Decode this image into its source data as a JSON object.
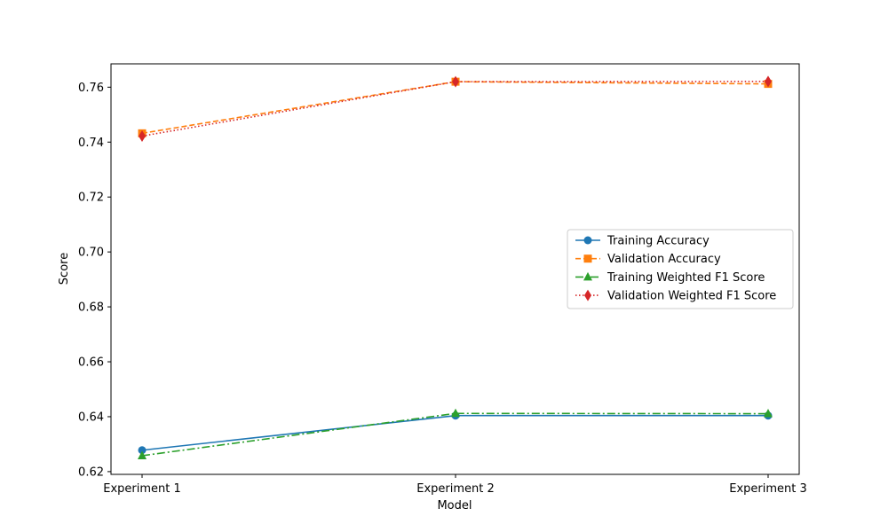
{
  "chart_data": {
    "type": "line",
    "categories": [
      "Experiment 1",
      "Experiment 2",
      "Experiment 3"
    ],
    "xlabel": "Model",
    "ylabel": "Score",
    "ylim": [
      0.619,
      0.7685
    ],
    "yticks": [
      0.62,
      0.64,
      0.66,
      0.68,
      0.7,
      0.72,
      0.74,
      0.76
    ],
    "ytick_labels": [
      "0.62",
      "0.64",
      "0.66",
      "0.68",
      "0.70",
      "0.72",
      "0.74",
      "0.76"
    ],
    "grid": false,
    "legend_position": "center-right",
    "series": [
      {
        "name": "Training Accuracy",
        "values": [
          0.6278,
          0.6404,
          0.6404
        ],
        "color": "#1f77b4",
        "marker": "circle",
        "linestyle": "solid"
      },
      {
        "name": "Validation Accuracy",
        "values": [
          0.7432,
          0.762,
          0.7612
        ],
        "color": "#ff7f0e",
        "marker": "square",
        "linestyle": "dashed"
      },
      {
        "name": "Training Weighted F1 Score",
        "values": [
          0.6258,
          0.6412,
          0.6411
        ],
        "color": "#2ca02c",
        "marker": "triangle",
        "linestyle": "dashdot"
      },
      {
        "name": "Validation Weighted F1 Score",
        "values": [
          0.7422,
          0.762,
          0.7621
        ],
        "color": "#d62728",
        "marker": "diamond",
        "linestyle": "dotted"
      }
    ]
  }
}
